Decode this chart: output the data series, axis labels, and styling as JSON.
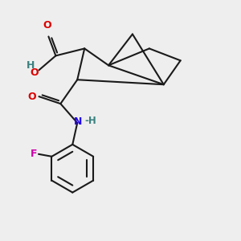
{
  "bg_color": "#eeeeee",
  "bond_color": "#1a1a1a",
  "O_color": "#dd0000",
  "N_color": "#2200ee",
  "F_color": "#cc00aa",
  "H_color": "#3a8080",
  "line_width": 1.5,
  "fig_size": [
    3.0,
    3.0
  ],
  "dpi": 100,
  "xlim": [
    0,
    10
  ],
  "ylim": [
    0.5,
    10.5
  ]
}
